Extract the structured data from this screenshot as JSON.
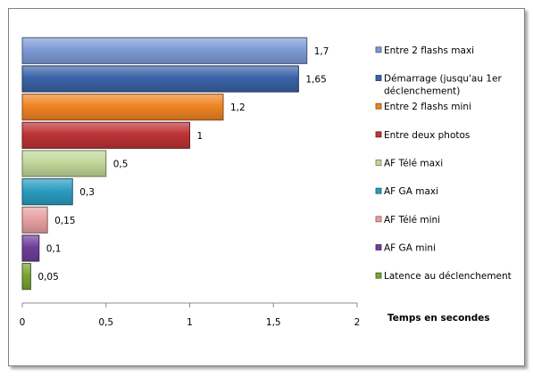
{
  "chart_data": {
    "type": "bar",
    "orientation": "horizontal",
    "xlabel": "Temps en secondes",
    "xlim": [
      0,
      2
    ],
    "x_ticks": [
      "0",
      "0,5",
      "1",
      "1,5",
      "2"
    ],
    "x_tick_values": [
      0,
      0.5,
      1,
      1.5,
      2
    ],
    "grid": false,
    "legend_position": "right",
    "bars": [
      {
        "label": "Entre 2 flashs maxi",
        "value": 1.7,
        "value_label": "1,7",
        "color": "#7e9bd7",
        "legend_lines": [
          "Entre 2 flashs maxi"
        ]
      },
      {
        "label": "Démarrage (jusqu'au 1er déclenchement)",
        "value": 1.65,
        "value_label": "1,65",
        "color": "#3a63a8",
        "legend_lines": [
          "Démarrage (jusqu'au 1er",
          "déclenchement)"
        ]
      },
      {
        "label": "Entre 2 flashs mini",
        "value": 1.2,
        "value_label": "1,2",
        "color": "#f08424",
        "legend_lines": [
          "Entre 2 flashs mini"
        ]
      },
      {
        "label": "Entre deux photos",
        "value": 1,
        "value_label": "1",
        "color": "#bd3336",
        "legend_lines": [
          "Entre deux photos"
        ]
      },
      {
        "label": "AF Télé maxi",
        "value": 0.5,
        "value_label": "0,5",
        "color": "#c2d89a",
        "legend_lines": [
          "AF Télé maxi"
        ]
      },
      {
        "label": "AF GA maxi",
        "value": 0.3,
        "value_label": "0,3",
        "color": "#2b9dc0",
        "legend_lines": [
          "AF GA maxi"
        ]
      },
      {
        "label": "AF Télé mini",
        "value": 0.15,
        "value_label": "0,15",
        "color": "#e8a1a1",
        "legend_lines": [
          "AF Télé mini"
        ]
      },
      {
        "label": "AF GA mini",
        "value": 0.1,
        "value_label": "0,1",
        "color": "#6f3f9a",
        "legend_lines": [
          "AF GA mini"
        ]
      },
      {
        "label": "Latence au déclenchement",
        "value": 0.05,
        "value_label": "0,05",
        "color": "#78a633",
        "legend_lines": [
          "Latence au déclenchement"
        ]
      }
    ]
  }
}
